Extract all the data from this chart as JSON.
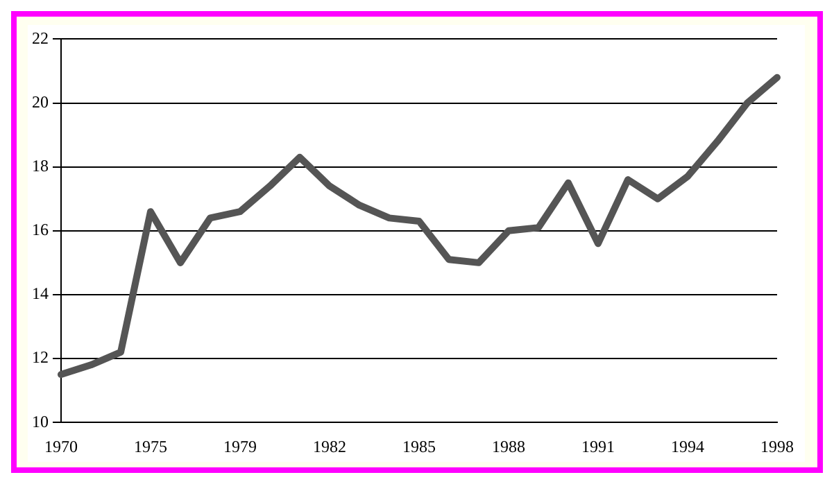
{
  "chart_data": {
    "type": "line",
    "categories": [
      "1970",
      null,
      null,
      "1975",
      null,
      null,
      "1979",
      null,
      null,
      "1982",
      null,
      null,
      "1985",
      null,
      null,
      "1988",
      null,
      null,
      "1991",
      null,
      null,
      "1994",
      null,
      null,
      "1998"
    ],
    "series": [
      {
        "color": "#555555",
        "values": [
          11.5,
          11.8,
          12.2,
          16.6,
          15.0,
          16.4,
          16.6,
          17.4,
          18.3,
          17.4,
          16.8,
          16.4,
          16.3,
          15.1,
          15.0,
          16.0,
          16.1,
          17.5,
          15.6,
          17.6,
          17.0,
          17.7,
          18.8,
          20.0,
          20.8
        ]
      }
    ],
    "ylim": [
      10,
      22
    ],
    "yticks": [
      10,
      12,
      14,
      16,
      18,
      20,
      22
    ],
    "grid": "y",
    "legend": false,
    "marker": "none",
    "line_style": "solid"
  }
}
